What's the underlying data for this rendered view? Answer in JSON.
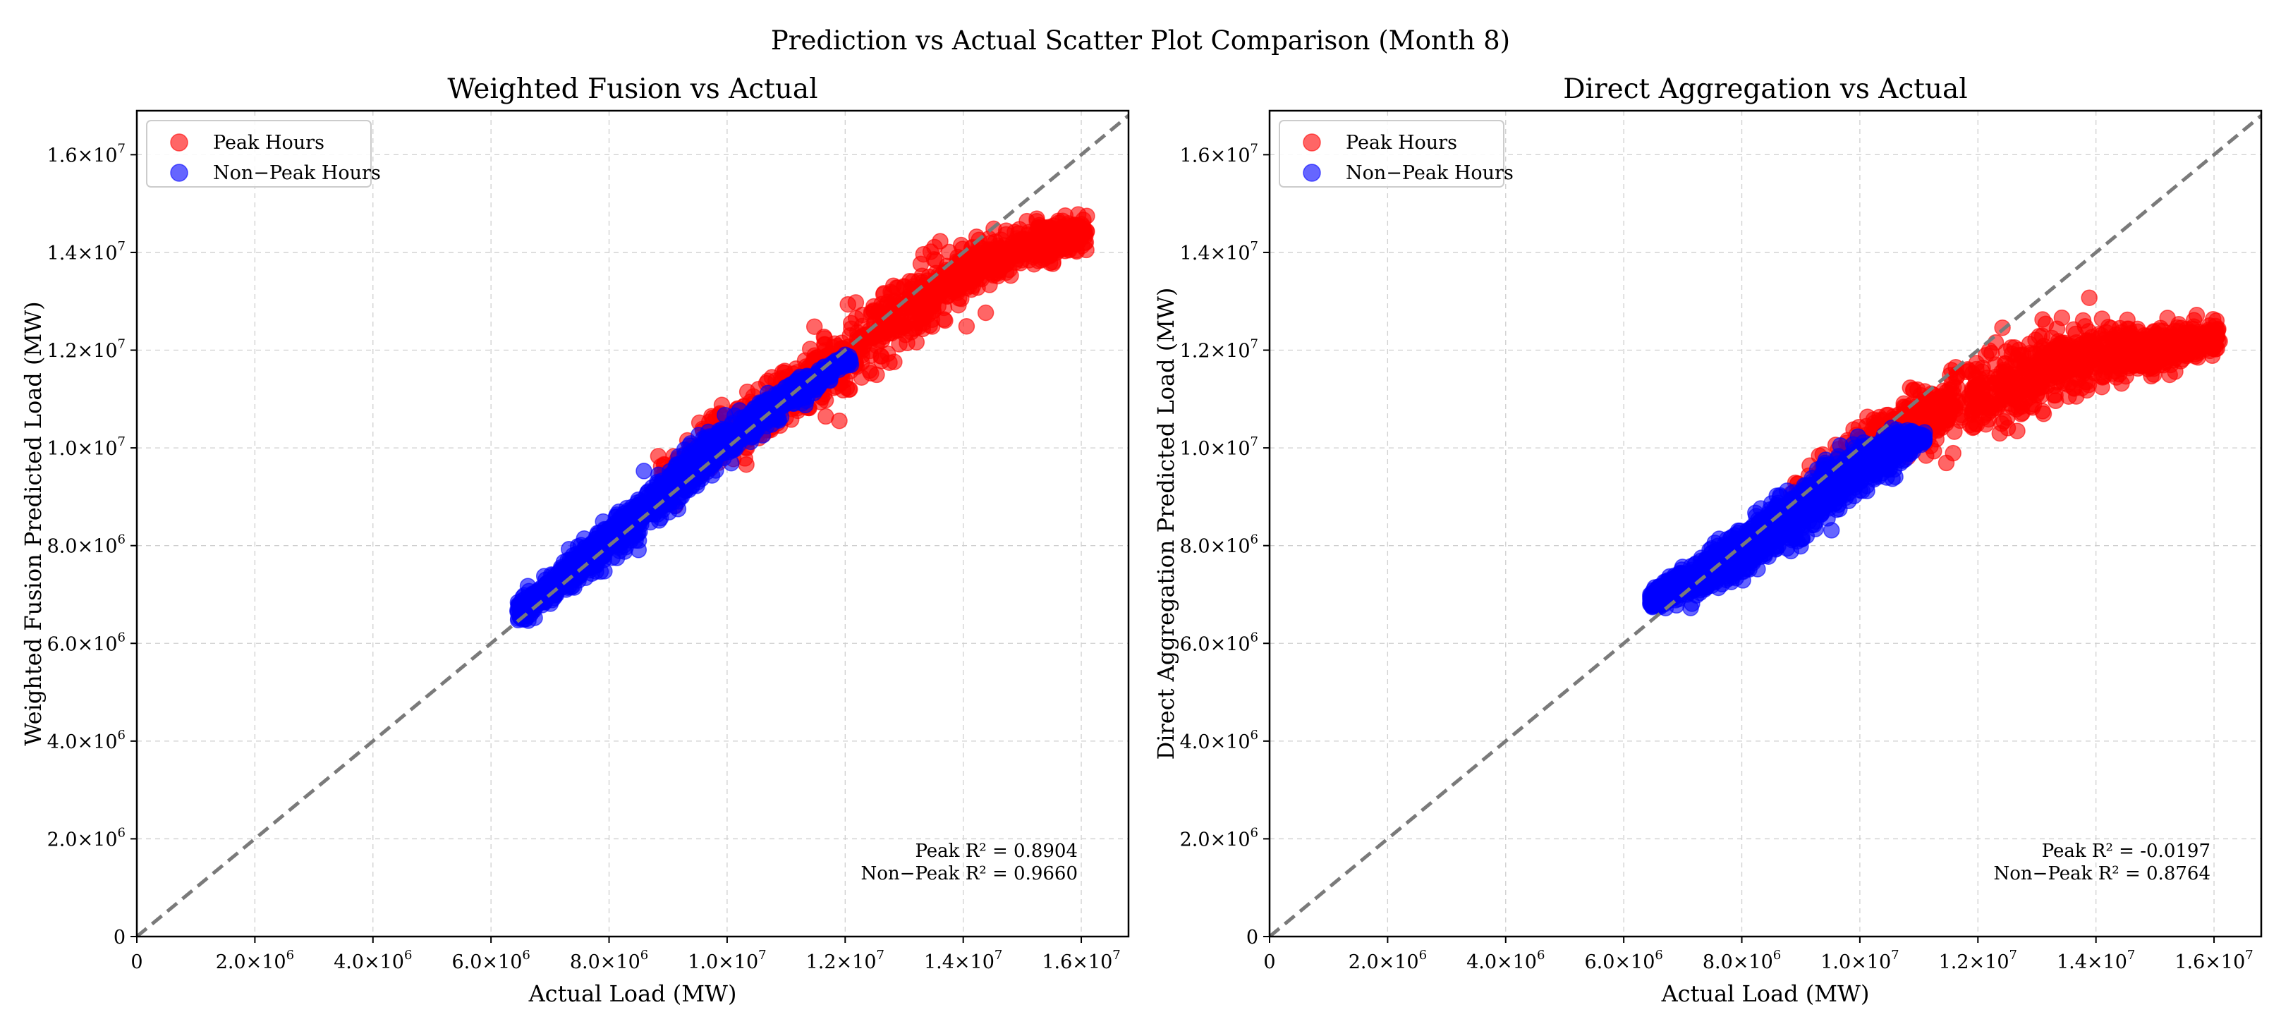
{
  "chart_data": {
    "type": "scatter",
    "suptitle": "Prediction vs Actual Scatter Plot Comparison (Month 8)",
    "panels": [
      {
        "title": "Weighted Fusion vs Actual",
        "xlabel": "Actual Load (MW)",
        "ylabel": "Weighted Fusion Predicted Load (MW)",
        "xlim": [
          0,
          16800000
        ],
        "ylim": [
          0,
          16900000
        ],
        "grid": true,
        "legend_position": "top-left",
        "diagonal": "y = x (dashed grey)",
        "annotation": [
          "Peak R² = 0.8904",
          "Non−Peak R² = 0.9660"
        ],
        "series": [
          {
            "name": "Peak Hours",
            "color": "#ff0000",
            "trend": [
              [
                9000000,
                9400000
              ],
              [
                10500000,
                10700000
              ],
              [
                12000000,
                11900000
              ],
              [
                13000000,
                12800000
              ],
              [
                14000000,
                13600000
              ],
              [
                15000000,
                14100000
              ],
              [
                16000000,
                14400000
              ]
            ],
            "spread": [
              0.45,
              0.55,
              0.6,
              0.6,
              0.5,
              0.4,
              0.3
            ]
          },
          {
            "name": "Non−Peak Hours",
            "color": "#0000ff",
            "trend": [
              [
                6500000,
                6650000
              ],
              [
                7500000,
                7600000
              ],
              [
                8500000,
                8600000
              ],
              [
                9500000,
                9700000
              ],
              [
                10500000,
                10600000
              ],
              [
                11500000,
                11400000
              ],
              [
                12000000,
                11800000
              ]
            ],
            "spread": [
              0.2,
              0.3,
              0.4,
              0.4,
              0.3,
              0.2,
              0.1
            ]
          }
        ]
      },
      {
        "title": "Direct Aggregation vs Actual",
        "xlabel": "Actual Load (MW)",
        "ylabel": "Direct Aggregation Predicted Load (MW)",
        "xlim": [
          0,
          16800000
        ],
        "ylim": [
          0,
          16900000
        ],
        "grid": true,
        "legend_position": "top-left",
        "diagonal": "y = x (dashed grey)",
        "annotation": [
          "Peak R² = -0.0197",
          "Non−Peak R² = 0.8764"
        ],
        "series": [
          {
            "name": "Peak Hours",
            "color": "#ff0000",
            "trend": [
              [
                9000000,
                9000000
              ],
              [
                10000000,
                9900000
              ],
              [
                11000000,
                10600000
              ],
              [
                12000000,
                11100000
              ],
              [
                13000000,
                11500000
              ],
              [
                14000000,
                11900000
              ],
              [
                15000000,
                12050000
              ],
              [
                16000000,
                12250000
              ]
            ],
            "spread": [
              0.4,
              0.5,
              0.6,
              0.7,
              0.7,
              0.6,
              0.4,
              0.25
            ]
          },
          {
            "name": "Non−Peak Hours",
            "color": "#0000ff",
            "trend": [
              [
                6500000,
                6900000
              ],
              [
                7500000,
                7500000
              ],
              [
                8500000,
                8300000
              ],
              [
                9500000,
                9200000
              ],
              [
                10500000,
                9900000
              ],
              [
                11000000,
                10200000
              ]
            ],
            "spread": [
              0.2,
              0.35,
              0.5,
              0.5,
              0.35,
              0.15
            ]
          }
        ]
      }
    ],
    "xticks": [
      0,
      2000000,
      4000000,
      6000000,
      8000000,
      10000000,
      12000000,
      14000000,
      16000000
    ],
    "xtick_labels": [
      [
        "0",
        ""
      ],
      [
        "2.0×10",
        "6"
      ],
      [
        "4.0×10",
        "6"
      ],
      [
        "6.0×10",
        "6"
      ],
      [
        "8.0×10",
        "6"
      ],
      [
        "1.0×10",
        "7"
      ],
      [
        "1.2×10",
        "7"
      ],
      [
        "1.4×10",
        "7"
      ],
      [
        "1.6×10",
        "7"
      ]
    ],
    "yticks": [
      0,
      2000000,
      4000000,
      6000000,
      8000000,
      10000000,
      12000000,
      14000000,
      16000000
    ],
    "ytick_labels": [
      [
        "0",
        ""
      ],
      [
        "2.0×10",
        "6"
      ],
      [
        "4.0×10",
        "6"
      ],
      [
        "6.0×10",
        "6"
      ],
      [
        "8.0×10",
        "6"
      ],
      [
        "1.0×10",
        "7"
      ],
      [
        "1.2×10",
        "7"
      ],
      [
        "1.4×10",
        "7"
      ],
      [
        "1.6×10",
        "7"
      ]
    ]
  }
}
